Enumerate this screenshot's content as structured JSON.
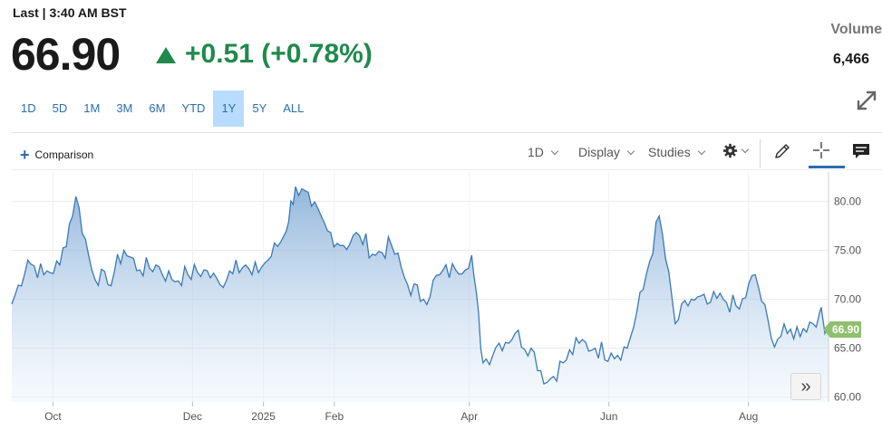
{
  "header": {
    "last_label": "Last | 3:40 AM BST",
    "price": "66.90",
    "change": "+0.51 (+0.78%)",
    "volume_label": "Volume",
    "volume_value": "6,466"
  },
  "colors": {
    "up": "#1f8a4c",
    "accent": "#2b6eb0",
    "line": "#3a7ab8",
    "price_tag": "#8fc06d",
    "active_tab": "#b8dcff"
  },
  "range_tabs": [
    {
      "label": "1D",
      "active": false
    },
    {
      "label": "5D",
      "active": false
    },
    {
      "label": "1M",
      "active": false
    },
    {
      "label": "3M",
      "active": false
    },
    {
      "label": "6M",
      "active": false
    },
    {
      "label": "YTD",
      "active": false
    },
    {
      "label": "1Y",
      "active": true
    },
    {
      "label": "5Y",
      "active": false
    },
    {
      "label": "ALL",
      "active": false
    }
  ],
  "toolbar": {
    "comparison_label": "Comparison",
    "interval_label": "1D",
    "display_label": "Display",
    "studies_label": "Studies",
    "settings_icon": "gear-icon",
    "draw_icon": "pencil-icon",
    "crosshair_icon": "crosshair-icon",
    "comment_icon": "comment-icon",
    "expand_icon": "expand-icon",
    "next_icon": "double-chevron-right-icon"
  },
  "chart_data": {
    "type": "area",
    "title": "",
    "xlabel": "",
    "ylabel": "",
    "ylim": [
      59.5,
      83
    ],
    "y_ticks": [
      "80.00",
      "75.00",
      "70.00",
      "65.00",
      "60.00"
    ],
    "x_ticks": [
      "Oct",
      "Dec",
      "2025",
      "Feb",
      "Apr",
      "Jun",
      "Aug"
    ],
    "last_price_label": "66.90",
    "grid": true,
    "x": [
      "2024-09-13",
      "2024-09-20",
      "2024-09-27",
      "2024-10-04",
      "2024-10-11",
      "2024-10-18",
      "2024-10-25",
      "2024-11-01",
      "2024-11-08",
      "2024-11-15",
      "2024-11-22",
      "2024-11-29",
      "2024-12-06",
      "2024-12-13",
      "2024-12-20",
      "2024-12-27",
      "2025-01-03",
      "2025-01-10",
      "2025-01-15",
      "2025-01-22",
      "2025-01-29",
      "2025-02-05",
      "2025-02-12",
      "2025-02-19",
      "2025-02-26",
      "2025-03-05",
      "2025-03-12",
      "2025-03-19",
      "2025-03-26",
      "2025-04-02",
      "2025-04-07",
      "2025-04-14",
      "2025-04-21",
      "2025-04-28",
      "2025-05-05",
      "2025-05-12",
      "2025-05-19",
      "2025-05-26",
      "2025-06-02",
      "2025-06-09",
      "2025-06-16",
      "2025-06-23",
      "2025-06-30",
      "2025-07-07",
      "2025-07-14",
      "2025-07-21",
      "2025-07-28",
      "2025-08-04",
      "2025-08-11",
      "2025-08-18",
      "2025-08-25",
      "2025-09-01",
      "2025-09-05"
    ],
    "values": [
      69.5,
      74.0,
      72.5,
      73.5,
      80.5,
      73.0,
      71.5,
      75.0,
      73.0,
      73.5,
      72.0,
      72.5,
      73.0,
      71.5,
      74.0,
      72.5,
      74.0,
      76.5,
      81.5,
      79.5,
      77.0,
      75.5,
      76.5,
      74.5,
      75.5,
      71.5,
      70.0,
      72.5,
      73.0,
      74.5,
      63.5,
      65.5,
      66.5,
      65.0,
      61.5,
      63.5,
      65.5,
      65.0,
      64.5,
      65.0,
      71.0,
      78.5,
      67.5,
      70.0,
      69.5,
      70.0,
      69.0,
      72.5,
      66.0,
      66.5,
      67.0,
      68.5,
      66.9
    ]
  }
}
